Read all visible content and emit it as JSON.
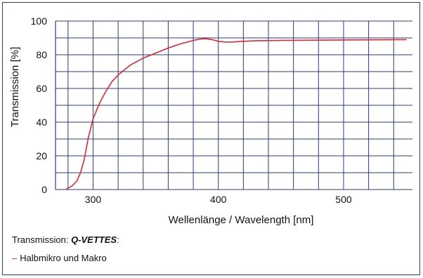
{
  "chart_data": {
    "type": "line",
    "ylabel": "Transmission [%]",
    "xlabel": "Wellenlänge / Wavelength [nm]",
    "xlim": [
      270,
      555
    ],
    "ylim": [
      0,
      100
    ],
    "x_ticks": [
      300,
      400,
      500
    ],
    "y_ticks": [
      0,
      20,
      40,
      60,
      80,
      100
    ],
    "grid": true,
    "grid_color": "#2b3a8c",
    "series": [
      {
        "name": "Halbmikro und Makro",
        "color": "#e3262e",
        "x": [
          279,
          283,
          287,
          290,
          293,
          296,
          300,
          305,
          310,
          315,
          320,
          330,
          340,
          350,
          360,
          370,
          380,
          385,
          390,
          395,
          400,
          405,
          410,
          420,
          430,
          450,
          500,
          550
        ],
        "y": [
          0.5,
          2,
          5,
          10,
          18,
          30,
          42,
          51,
          58,
          64,
          68,
          74,
          78,
          81,
          84,
          86.5,
          88.5,
          89.3,
          89.5,
          89,
          88,
          87.6,
          87.5,
          88,
          88.3,
          88.5,
          88.8,
          89
        ]
      }
    ],
    "legend_heading": "Transmission:",
    "legend_product": "Q-VETTES",
    "legend_colon": ":"
  }
}
